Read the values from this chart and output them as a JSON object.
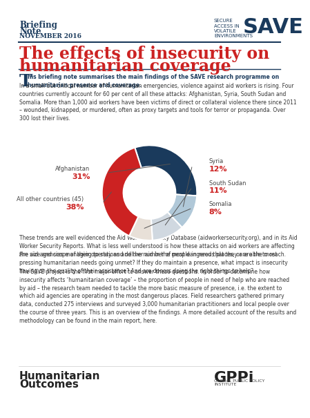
{
  "title_line1": "The effects of insecurity on",
  "title_line2": "humanitarian coverage",
  "header_left_line1": "Briefing",
  "header_left_line2": "Note",
  "header_left_line3": "NOVEMBER 2016",
  "save_text_small": "SECURE\nACCESS IN\nVOLATILE\nENVIRONMENTS",
  "save_text_large": "SAVE",
  "drop_cap": "T",
  "intro_bold": "his briefing note summarises the main findings of the SAVE research programme on\nhumanitarian presence and coverage.",
  "para1": "In a small but critical number of humanitarian emergencies, violence against aid workers is rising. Four\ncountries currently account for 60 per cent of all these attacks: Afghanistan, Syria, South Sudan and\nSomalia. More than 1,000 aid workers have been victims of direct or collateral violence there since 2011\n– wounded, kidnapped, or murdered, often as proxy targets and tools for terror or propaganda. Over\n300 lost their lives.",
  "pie_data": [
    31,
    12,
    11,
    8,
    38
  ],
  "pie_labels": [
    "Afghanistan\n31%",
    "Syria\n12%",
    "South Sudan\n11%",
    "Somalia\n8%",
    "All other countries (45)\n38%"
  ],
  "pie_colors": [
    "#1a3a5c",
    "#b0c8d8",
    "#d0d8e0",
    "#e8e0d8",
    "#cc2222"
  ],
  "pie_startangle": 108,
  "para2": "These trends are well evidenced the Aid Worker Security Database (aidworkersecurity.org), and in its Aid\nWorker Security Reports. What is less well understood is how these attacks on aid workers are affecting\nthe size and scope of their operations and the number of people in need that they are able to reach.",
  "para3": "Are aid agencies managing to stay and deliver aid in the most dangerous places, or are the most\npressing humanitarian needs going unmet? If they do maintain a presence, what impact is insecurity\nhaving on the quality of their assistance? And are donors doing the right things to help?",
  "para4": "The SAVE project is the first major effort to answer these questions. In order to determine how\ninsecurity affects ‘humanitarian coverage’ – the proportion of people in need of help who are reached\nby aid – the research team needed to tackle the more basic measure of presence, i.e. the extent to\nwhich aid agencies are operating in the most dangerous places. Field researchers gathered primary\ndata, conducted 275 interviews and surveyed 3,000 humanitarian practitioners and local people over\nthe course of three years. This is an overview of the findings. A more detailed account of the results and\nmethodology can be found in the main report, here.",
  "footer_left": "Humanitarian\nOutcomes",
  "footer_right": "GPPi",
  "footer_right_sub": "GLOBAL PUBLIC POLICY\nINSTITUTE",
  "navy": "#1a3a5c",
  "red": "#cc2222",
  "light_blue": "#b0c8d8",
  "bg": "#ffffff"
}
